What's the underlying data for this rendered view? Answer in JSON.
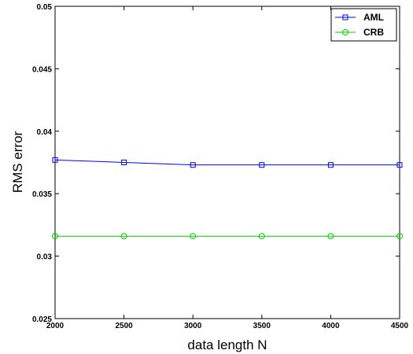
{
  "chart_data": {
    "type": "line",
    "title": "",
    "xlabel": "data length N",
    "ylabel": "RMS error",
    "xlim": [
      2000,
      4500
    ],
    "ylim": [
      0.025,
      0.05
    ],
    "x": [
      2000,
      2500,
      3000,
      3500,
      4000,
      4500
    ],
    "xticks": [
      "2000",
      "2500",
      "3000",
      "3500",
      "4000",
      "4500"
    ],
    "yticks": [
      "0.025",
      "0.03",
      "0.035",
      "0.04",
      "0.045",
      "0.05"
    ],
    "grid": false,
    "legend_position": "top-right",
    "series": [
      {
        "name": "AML",
        "values": [
          0.0377,
          0.0375,
          0.0373,
          0.0373,
          0.0373,
          0.0373
        ],
        "color": "#0000ff",
        "marker": "square"
      },
      {
        "name": "CRB",
        "values": [
          0.0316,
          0.0316,
          0.0316,
          0.0316,
          0.0316,
          0.0316
        ],
        "color": "#00cc00",
        "marker": "circle"
      }
    ]
  }
}
